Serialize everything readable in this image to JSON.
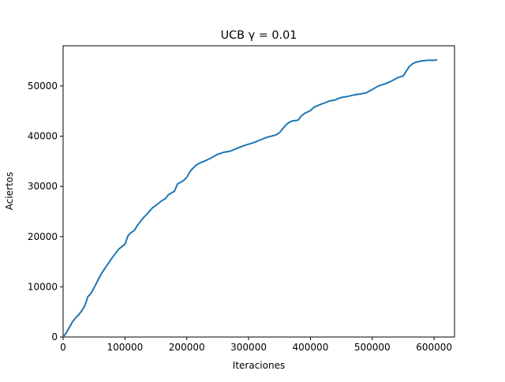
{
  "chart_data": {
    "type": "line",
    "title": "UCB γ = 0.01",
    "xlabel": "Iteraciones",
    "ylabel": "Aciertos",
    "xlim": [
      0,
      633000
    ],
    "ylim": [
      0,
      58000
    ],
    "x_ticks": [
      0,
      100000,
      200000,
      300000,
      400000,
      500000,
      600000
    ],
    "y_ticks": [
      0,
      10000,
      20000,
      30000,
      40000,
      50000
    ],
    "grid": false,
    "line_color": "#1f77b4",
    "series": [
      {
        "x": [
          0,
          5000,
          10000,
          15000,
          20000,
          25000,
          30000,
          35000,
          40000,
          45000,
          50000,
          55000,
          60000,
          65000,
          70000,
          75000,
          80000,
          90000,
          100000,
          105000,
          110000,
          115000,
          120000,
          125000,
          130000,
          135000,
          140000,
          145000,
          150000,
          155000,
          160000,
          165000,
          170000,
          175000,
          180000,
          185000,
          190000,
          195000,
          200000,
          205000,
          210000,
          215000,
          220000,
          230000,
          240000,
          250000,
          260000,
          270000,
          280000,
          290000,
          300000,
          310000,
          320000,
          330000,
          340000,
          345000,
          350000,
          360000,
          365000,
          370000,
          380000,
          385000,
          390000,
          400000,
          405000,
          410000,
          420000,
          425000,
          430000,
          440000,
          445000,
          450000,
          460000,
          470000,
          480000,
          490000,
          500000,
          510000,
          520000,
          530000,
          540000,
          550000,
          560000,
          565000,
          570000,
          580000,
          590000,
          600000,
          605000
        ],
        "y": [
          0,
          800,
          1900,
          3000,
          3800,
          4400,
          5200,
          6200,
          8000,
          8700,
          9800,
          11000,
          12200,
          13200,
          14100,
          15000,
          15900,
          17500,
          18500,
          20200,
          20800,
          21200,
          22200,
          23000,
          23800,
          24400,
          25100,
          25800,
          26200,
          26700,
          27200,
          27500,
          28300,
          28700,
          29000,
          30500,
          30800,
          31200,
          31800,
          32900,
          33600,
          34200,
          34600,
          35100,
          35700,
          36400,
          36800,
          37000,
          37500,
          38000,
          38400,
          38800,
          39300,
          39800,
          40100,
          40300,
          40700,
          42200,
          42700,
          43000,
          43200,
          44000,
          44500,
          45100,
          45700,
          46000,
          46500,
          46700,
          47000,
          47200,
          47500,
          47700,
          47900,
          48200,
          48400,
          48600,
          49300,
          50000,
          50400,
          50900,
          51600,
          52000,
          53900,
          54400,
          54700,
          55000,
          55100,
          55100,
          55200
        ]
      }
    ]
  }
}
